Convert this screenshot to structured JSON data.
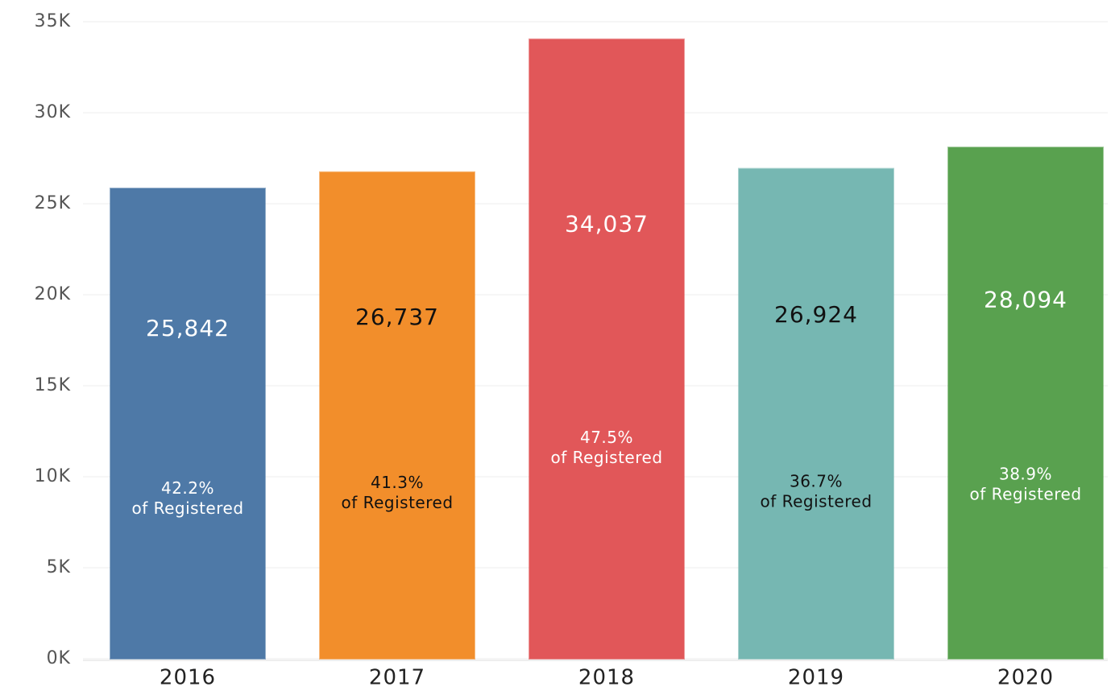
{
  "chart_data": {
    "type": "bar",
    "categories": [
      "2016",
      "2017",
      "2018",
      "2019",
      "2020"
    ],
    "values": [
      25842,
      26737,
      34037,
      26924,
      28094
    ],
    "value_labels": [
      "25,842",
      "26,737",
      "34,037",
      "26,924",
      "28,094"
    ],
    "share_labels": [
      "42.2%",
      "41.3%",
      "47.5%",
      "36.7%",
      "38.9%"
    ],
    "share_suffix": "of Registered",
    "colors": [
      "#4e79a7",
      "#f28e2b",
      "#e15759",
      "#76b7b2",
      "#59a14f"
    ],
    "label_colors": [
      "#ffffff",
      "#111111",
      "#ffffff",
      "#111111",
      "#ffffff"
    ],
    "ylim": [
      0,
      35000
    ],
    "yticks": [
      {
        "value": 0,
        "label": "0K"
      },
      {
        "value": 5000,
        "label": "5K"
      },
      {
        "value": 10000,
        "label": "10K"
      },
      {
        "value": 15000,
        "label": "15K"
      },
      {
        "value": 20000,
        "label": "20K"
      },
      {
        "value": 25000,
        "label": "25K"
      },
      {
        "value": 30000,
        "label": "30K"
      },
      {
        "value": 35000,
        "label": "35K"
      }
    ],
    "grid": true
  }
}
